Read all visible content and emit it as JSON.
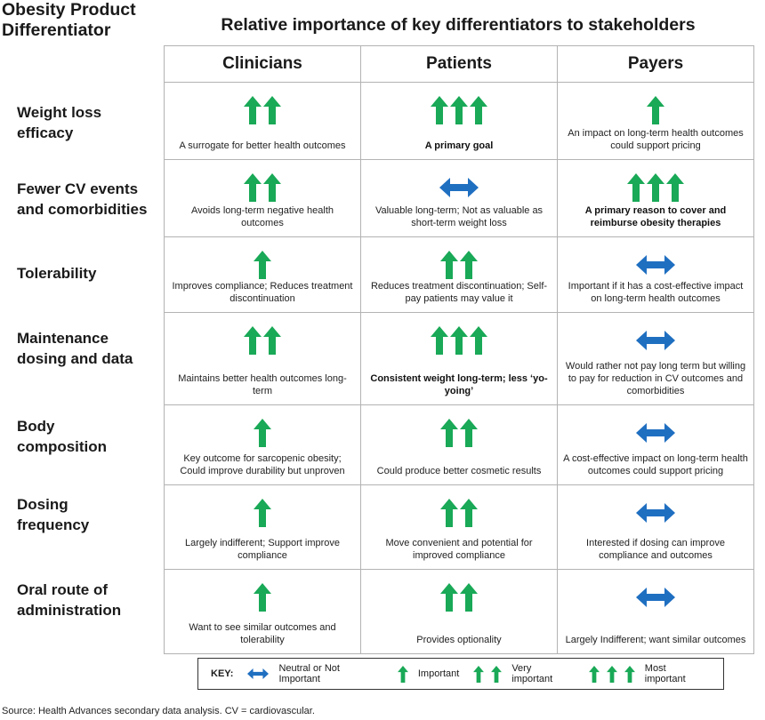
{
  "corner_title": [
    "Obesity Product",
    "Differentiator"
  ],
  "main_title": "Relative importance of key differentiators to stakeholders",
  "columns": [
    "Clinicians",
    "Patients",
    "Payers"
  ],
  "colors": {
    "arrow_green": "#19a957",
    "arrow_blue": "#1f6fc1",
    "border": "#b3b3b3"
  },
  "rows": [
    {
      "label": [
        "Weight loss",
        "efficacy"
      ],
      "cells": [
        {
          "icon": "up-arrow-2",
          "text": "A surrogate for better health outcomes",
          "bold": false
        },
        {
          "icon": "up-arrow-3",
          "text": "A primary goal",
          "bold": true
        },
        {
          "icon": "up-arrow-1",
          "text": "An impact on long-term health outcomes could support pricing",
          "bold": false
        }
      ]
    },
    {
      "label": [
        "Fewer CV events",
        "and comorbidities"
      ],
      "cells": [
        {
          "icon": "up-arrow-2",
          "text": "Avoids long-term negative health outcomes",
          "bold": false
        },
        {
          "icon": "double-arrow",
          "text": "Valuable long-term; Not as valuable as short-term weight loss",
          "bold": false
        },
        {
          "icon": "up-arrow-3",
          "text": "A primary reason to cover and reimburse obesity therapies",
          "bold": true
        }
      ]
    },
    {
      "label": [
        "Tolerability"
      ],
      "cells": [
        {
          "icon": "up-arrow-1",
          "text": "Improves compliance; Reduces treatment discontinuation",
          "bold": false
        },
        {
          "icon": "up-arrow-2",
          "text": "Reduces treatment discontinuation; Self-pay patients may value it",
          "bold": false
        },
        {
          "icon": "double-arrow",
          "text": "Important if it has a cost-effective impact on long-term health outcomes",
          "bold": false
        }
      ]
    },
    {
      "label": [
        "Maintenance",
        "dosing and data"
      ],
      "cells": [
        {
          "icon": "up-arrow-2",
          "text": "Maintains better health outcomes long-term",
          "bold": false
        },
        {
          "icon": "up-arrow-3",
          "text": "Consistent weight long-term; less ‘yo-yoing’",
          "bold": true
        },
        {
          "icon": "double-arrow",
          "text": "Would rather not pay long term but willing to pay for reduction in CV outcomes and comorbidities",
          "bold": false
        }
      ]
    },
    {
      "label": [
        "Body",
        "composition"
      ],
      "cells": [
        {
          "icon": "up-arrow-1",
          "text": "Key outcome for sarcopenic obesity; Could improve durability but unproven",
          "bold": false
        },
        {
          "icon": "up-arrow-2",
          "text": "Could produce better cosmetic results",
          "bold": false
        },
        {
          "icon": "double-arrow",
          "text": "A cost-effective impact on long-term health outcomes could support pricing",
          "bold": false
        }
      ]
    },
    {
      "label": [
        "Dosing",
        "frequency"
      ],
      "cells": [
        {
          "icon": "up-arrow-1",
          "text": "Largely indifferent; Support improve compliance",
          "bold": false
        },
        {
          "icon": "up-arrow-2",
          "text": "Move convenient and potential for improved compliance",
          "bold": false
        },
        {
          "icon": "double-arrow",
          "text": "Interested if dosing can improve compliance and outcomes",
          "bold": false
        }
      ]
    },
    {
      "label": [
        "Oral route of",
        "administration"
      ],
      "cells": [
        {
          "icon": "up-arrow-1",
          "text": "Want to see similar outcomes and tolerability",
          "bold": false
        },
        {
          "icon": "up-arrow-2",
          "text": "Provides optionality",
          "bold": false
        },
        {
          "icon": "double-arrow",
          "text": "Largely Indifferent; want similar outcomes",
          "bold": false
        }
      ]
    }
  ],
  "key": {
    "title": "KEY:",
    "items": [
      {
        "icon": "double-arrow",
        "label": "Neutral or Not Important"
      },
      {
        "icon": "up-arrow-1",
        "label": "Important"
      },
      {
        "icon": "up-arrow-2",
        "label": "Very important"
      },
      {
        "icon": "up-arrow-3",
        "label": "Most important"
      }
    ]
  },
  "source": "Source: Health Advances secondary data analysis. CV = cardiovascular."
}
